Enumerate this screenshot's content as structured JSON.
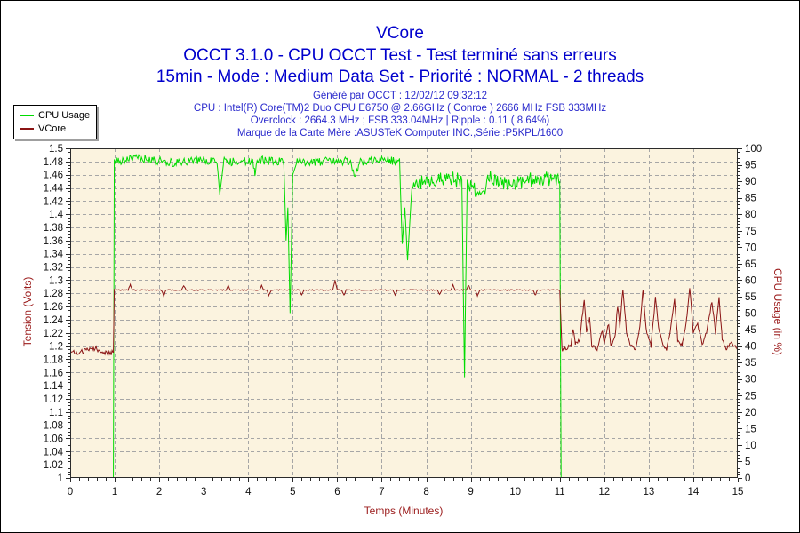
{
  "header": {
    "title": "VCore",
    "line2": "OCCT 3.1.0 - CPU OCCT Test - Test terminé sans erreurs",
    "line3": "15min - Mode : Medium Data Set - Priorité : NORMAL - 2 threads",
    "sub1": "Généré par OCCT : 12/02/12 09:32:12",
    "sub2": "CPU : Intel(R) Core(TM)2 Duo CPU E6750 @ 2.66GHz ( Conroe ) 2666 MHz FSB 333MHz",
    "sub3": "Overclock : 2664.3 MHz ; FSB 333.04MHz | Ripple : 0.11 ( 8.64%)",
    "sub4": "Marque de la Carte Mère :ASUSTeK Computer INC.,Série :P5KPL/1600",
    "title_color": "#0000CC",
    "subtitle_color": "#2A2ACC"
  },
  "legend": {
    "items": [
      {
        "label": "CPU Usage",
        "color": "#00DC00"
      },
      {
        "label": "VCore",
        "color": "#8B1414"
      }
    ]
  },
  "chart_data": {
    "type": "line",
    "title": "VCore",
    "x_axis": {
      "label": "Temps (Minutes)",
      "min": 0,
      "max": 15,
      "major": 1,
      "minor": 0.2
    },
    "y_left": {
      "label": "Tension (Volts)",
      "min": 1,
      "max": 1.5,
      "major": 0.02,
      "minor": 0.005
    },
    "y_right": {
      "label": "CPU Usage (in %)",
      "min": 0,
      "max": 100,
      "major": 5,
      "minor": 1
    },
    "grid": true,
    "legend_position": "top-left",
    "plot_bg": "#FBF3DF",
    "grid_color": "#A6A6A6",
    "axis_color": "#2B2B2B",
    "tick_label_color": "#111111",
    "axis_title_color": "#9B1B1B",
    "seed": 1337,
    "sample_step": 0.02,
    "series": [
      {
        "name": "CPU Usage",
        "axis": "right",
        "color": "#00DC00",
        "keyframes": [
          [
            0,
            0
          ],
          [
            0.97,
            0
          ],
          [
            0.99,
            96
          ],
          [
            1.6,
            97
          ],
          [
            2.3,
            95.5
          ],
          [
            2.9,
            96.5
          ],
          [
            3.3,
            96
          ],
          [
            3.36,
            86
          ],
          [
            3.45,
            96
          ],
          [
            4.1,
            96
          ],
          [
            4.15,
            92
          ],
          [
            4.2,
            96.5
          ],
          [
            4.8,
            96
          ],
          [
            4.85,
            72
          ],
          [
            4.89,
            82
          ],
          [
            4.94,
            50
          ],
          [
            5.0,
            92
          ],
          [
            5.1,
            96
          ],
          [
            6.3,
            96
          ],
          [
            6.4,
            91
          ],
          [
            6.5,
            96
          ],
          [
            7.0,
            96.5
          ],
          [
            7.4,
            96
          ],
          [
            7.46,
            71
          ],
          [
            7.52,
            82
          ],
          [
            7.58,
            66
          ],
          [
            7.68,
            89
          ],
          [
            8.0,
            90
          ],
          [
            8.5,
            91
          ],
          [
            8.8,
            90
          ],
          [
            8.86,
            31
          ],
          [
            8.92,
            90
          ],
          [
            9.3,
            85
          ],
          [
            9.4,
            91
          ],
          [
            10.0,
            89
          ],
          [
            10.5,
            91
          ],
          [
            11.0,
            90
          ],
          [
            11.03,
            0
          ],
          [
            15,
            0
          ]
        ],
        "noise": [
          [
            0,
            0.97,
            0
          ],
          [
            0.99,
            3.3,
            1.3
          ],
          [
            3.45,
            4.8,
            1.3
          ],
          [
            5.1,
            7.4,
            1.3
          ],
          [
            7.68,
            11.0,
            2.3
          ],
          [
            11.03,
            15,
            0
          ]
        ]
      },
      {
        "name": "VCore",
        "axis": "left",
        "color": "#8B1414",
        "keyframes": [
          [
            0,
            1.19
          ],
          [
            0.3,
            1.192
          ],
          [
            0.55,
            1.197
          ],
          [
            0.8,
            1.19
          ],
          [
            0.97,
            1.19
          ],
          [
            0.99,
            1.285
          ],
          [
            1.3,
            1.285
          ],
          [
            1.35,
            1.293
          ],
          [
            1.4,
            1.285
          ],
          [
            2.05,
            1.285
          ],
          [
            2.1,
            1.276
          ],
          [
            2.15,
            1.285
          ],
          [
            2.5,
            1.285
          ],
          [
            2.55,
            1.292
          ],
          [
            2.6,
            1.285
          ],
          [
            3.5,
            1.285
          ],
          [
            3.55,
            1.292
          ],
          [
            3.6,
            1.285
          ],
          [
            4.25,
            1.285
          ],
          [
            4.3,
            1.292
          ],
          [
            4.35,
            1.285
          ],
          [
            4.42,
            1.285
          ],
          [
            4.46,
            1.277
          ],
          [
            4.52,
            1.285
          ],
          [
            5.15,
            1.285
          ],
          [
            5.2,
            1.277
          ],
          [
            5.25,
            1.285
          ],
          [
            5.9,
            1.285
          ],
          [
            5.95,
            1.3
          ],
          [
            6.0,
            1.285
          ],
          [
            6.1,
            1.285
          ],
          [
            6.15,
            1.277
          ],
          [
            6.2,
            1.285
          ],
          [
            7.25,
            1.285
          ],
          [
            7.3,
            1.277
          ],
          [
            7.35,
            1.285
          ],
          [
            8.25,
            1.285
          ],
          [
            8.3,
            1.278
          ],
          [
            8.35,
            1.285
          ],
          [
            8.55,
            1.285
          ],
          [
            8.6,
            1.293
          ],
          [
            8.65,
            1.285
          ],
          [
            8.9,
            1.285
          ],
          [
            8.95,
            1.292
          ],
          [
            9.0,
            1.285
          ],
          [
            9.1,
            1.285
          ],
          [
            9.15,
            1.276
          ],
          [
            9.2,
            1.285
          ],
          [
            10.4,
            1.285
          ],
          [
            10.45,
            1.277
          ],
          [
            10.5,
            1.285
          ],
          [
            11.0,
            1.285
          ],
          [
            11.05,
            1.195
          ],
          [
            11.25,
            1.2
          ],
          [
            11.3,
            1.225
          ],
          [
            11.35,
            1.205
          ],
          [
            11.45,
            1.21
          ],
          [
            11.55,
            1.272
          ],
          [
            11.6,
            1.22
          ],
          [
            11.67,
            1.243
          ],
          [
            11.72,
            1.2
          ],
          [
            11.85,
            1.196
          ],
          [
            11.95,
            1.225
          ],
          [
            12.0,
            1.205
          ],
          [
            12.1,
            1.235
          ],
          [
            12.15,
            1.2
          ],
          [
            12.25,
            1.22
          ],
          [
            12.3,
            1.262
          ],
          [
            12.35,
            1.23
          ],
          [
            12.42,
            1.287
          ],
          [
            12.5,
            1.22
          ],
          [
            12.6,
            1.2
          ],
          [
            12.7,
            1.196
          ],
          [
            12.8,
            1.23
          ],
          [
            12.87,
            1.285
          ],
          [
            12.95,
            1.22
          ],
          [
            13.05,
            1.2
          ],
          [
            13.15,
            1.272
          ],
          [
            13.22,
            1.23
          ],
          [
            13.3,
            1.205
          ],
          [
            13.4,
            1.196
          ],
          [
            13.5,
            1.23
          ],
          [
            13.58,
            1.27
          ],
          [
            13.65,
            1.21
          ],
          [
            13.75,
            1.2
          ],
          [
            13.85,
            1.24
          ],
          [
            13.92,
            1.29
          ],
          [
            14.0,
            1.22
          ],
          [
            14.1,
            1.235
          ],
          [
            14.2,
            1.2
          ],
          [
            14.3,
            1.22
          ],
          [
            14.42,
            1.268
          ],
          [
            14.5,
            1.22
          ],
          [
            14.58,
            1.275
          ],
          [
            14.65,
            1.21
          ],
          [
            14.75,
            1.196
          ],
          [
            14.85,
            1.205
          ],
          [
            15,
            1.196
          ]
        ],
        "noise": [
          [
            0,
            0.97,
            0.0038
          ],
          [
            0.99,
            11.0,
            0.0008
          ],
          [
            11.05,
            15,
            0.003
          ]
        ]
      }
    ]
  }
}
